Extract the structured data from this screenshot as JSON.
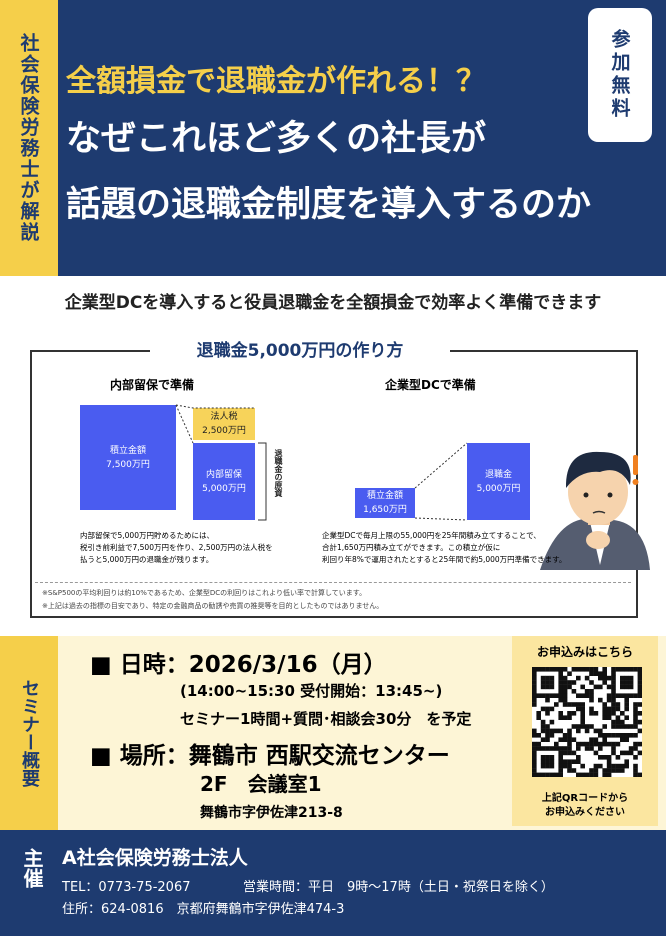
{
  "header": {
    "side_label": "社会保険労務士が解説",
    "badge": "参加無料",
    "catch": "全額損金で退職金が作れる！？",
    "title_lines": [
      "なぜこれほど多くの社長が",
      "話題の退職金制度を導入するのか"
    ]
  },
  "lead": "企業型DCを導入すると役員退職金を全額損金で効率よく準備できます",
  "diagram": {
    "title": "退職金5,000万円の作り方",
    "left": {
      "heading": "内部留保で準備",
      "saving": {
        "label": "積立金額",
        "amount": "7,500万円"
      },
      "tax": {
        "label": "法人税",
        "amount": "2,500万円"
      },
      "reserve": {
        "label": "内部留保",
        "amount": "5,000万円"
      },
      "side_note": "退職金の原資",
      "text": [
        "内部留保で5,000万円貯めるためには、",
        "税引き前利益で7,500万円を作り、2,500万円の法人税を",
        "払うと5,000万円の退職金が残ります。"
      ]
    },
    "right": {
      "heading": "企業型DCで準備",
      "saving": {
        "label": "積立金額",
        "amount": "1,650万円"
      },
      "retirement": {
        "label": "退職金",
        "amount": "5,000万円"
      },
      "text": [
        "企業型DCで毎月上限の55,000円を25年間積み立てすることで、",
        "合計1,650万円積み立てができます。この積立が仮に",
        "利回り年8%で運用されたとすると25年間で約5,000万円準備できます。"
      ]
    },
    "notes": [
      "※S&P500の平均利回りは約10%であるため、企業型DCの利回りはこれより低い率で計算しています。",
      "※上記は過去の指標の目安であり、特定の金融商品の勧誘や売買の推奨等を目的としたものではありません。"
    ]
  },
  "seminar": {
    "side_label": "セミナー概要",
    "date": "日時：2026/3/16（月）",
    "time": "(14:00~15:30  受付開始：13:45~)",
    "program": "セミナー1時間+質問･相談会30分　を予定",
    "place": "場所：舞鶴市 西駅交流センター",
    "room": "2F　会議室1",
    "address": "舞鶴市字伊佐津213-8",
    "qr": {
      "heading": "お申込みはこちら",
      "caption": [
        "上記QRコードから",
        "お申込みください"
      ]
    }
  },
  "footer": {
    "side_label": "主催",
    "org": "A社会保険労務士法人",
    "tel": "TEL：0773-75-2067",
    "hours": "営業時間：平日　9時〜17時（土日・祝祭日を除く）",
    "address": "住所：624-0816　京都府舞鶴市字伊佐津474-3"
  }
}
